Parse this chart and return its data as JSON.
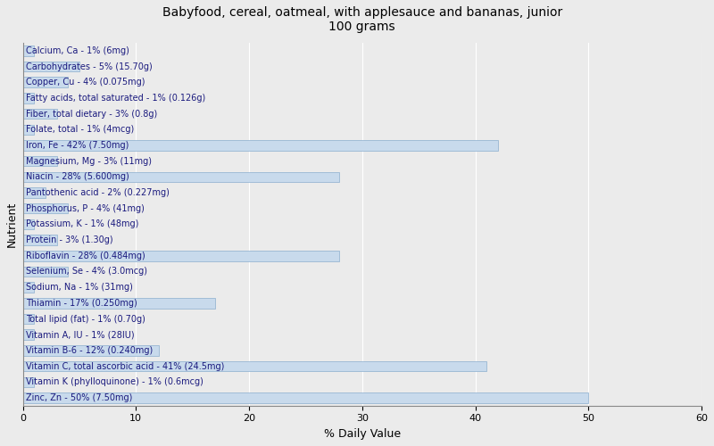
{
  "title": "Babyfood, cereal, oatmeal, with applesauce and bananas, junior\n100 grams",
  "xlabel": "% Daily Value",
  "ylabel": "Nutrient",
  "xlim": [
    0,
    60
  ],
  "xticks": [
    0,
    10,
    20,
    30,
    40,
    50,
    60
  ],
  "bar_color": "#c8daec",
  "bar_edge_color": "#8aaece",
  "background_color": "#ebebeb",
  "plot_background": "#ebebeb",
  "nutrients": [
    {
      "label": "Calcium, Ca - 1% (6mg)",
      "value": 1
    },
    {
      "label": "Carbohydrates - 5% (15.70g)",
      "value": 5
    },
    {
      "label": "Copper, Cu - 4% (0.075mg)",
      "value": 4
    },
    {
      "label": "Fatty acids, total saturated - 1% (0.126g)",
      "value": 1
    },
    {
      "label": "Fiber, total dietary - 3% (0.8g)",
      "value": 3
    },
    {
      "label": "Folate, total - 1% (4mcg)",
      "value": 1
    },
    {
      "label": "Iron, Fe - 42% (7.50mg)",
      "value": 42
    },
    {
      "label": "Magnesium, Mg - 3% (11mg)",
      "value": 3
    },
    {
      "label": "Niacin - 28% (5.600mg)",
      "value": 28
    },
    {
      "label": "Pantothenic acid - 2% (0.227mg)",
      "value": 2
    },
    {
      "label": "Phosphorus, P - 4% (41mg)",
      "value": 4
    },
    {
      "label": "Potassium, K - 1% (48mg)",
      "value": 1
    },
    {
      "label": "Protein - 3% (1.30g)",
      "value": 3
    },
    {
      "label": "Riboflavin - 28% (0.484mg)",
      "value": 28
    },
    {
      "label": "Selenium, Se - 4% (3.0mcg)",
      "value": 4
    },
    {
      "label": "Sodium, Na - 1% (31mg)",
      "value": 1
    },
    {
      "label": "Thiamin - 17% (0.250mg)",
      "value": 17
    },
    {
      "label": "Total lipid (fat) - 1% (0.70g)",
      "value": 1
    },
    {
      "label": "Vitamin A, IU - 1% (28IU)",
      "value": 1
    },
    {
      "label": "Vitamin B-6 - 12% (0.240mg)",
      "value": 12
    },
    {
      "label": "Vitamin C, total ascorbic acid - 41% (24.5mg)",
      "value": 41
    },
    {
      "label": "Vitamin K (phylloquinone) - 1% (0.6mcg)",
      "value": 1
    },
    {
      "label": "Zinc, Zn - 50% (7.50mg)",
      "value": 50
    }
  ],
  "title_fontsize": 10,
  "label_fontsize": 7,
  "tick_fontsize": 8,
  "axis_label_fontsize": 9,
  "text_color": "#1a1a7e",
  "grid_color": "#ffffff",
  "bar_height": 0.65
}
